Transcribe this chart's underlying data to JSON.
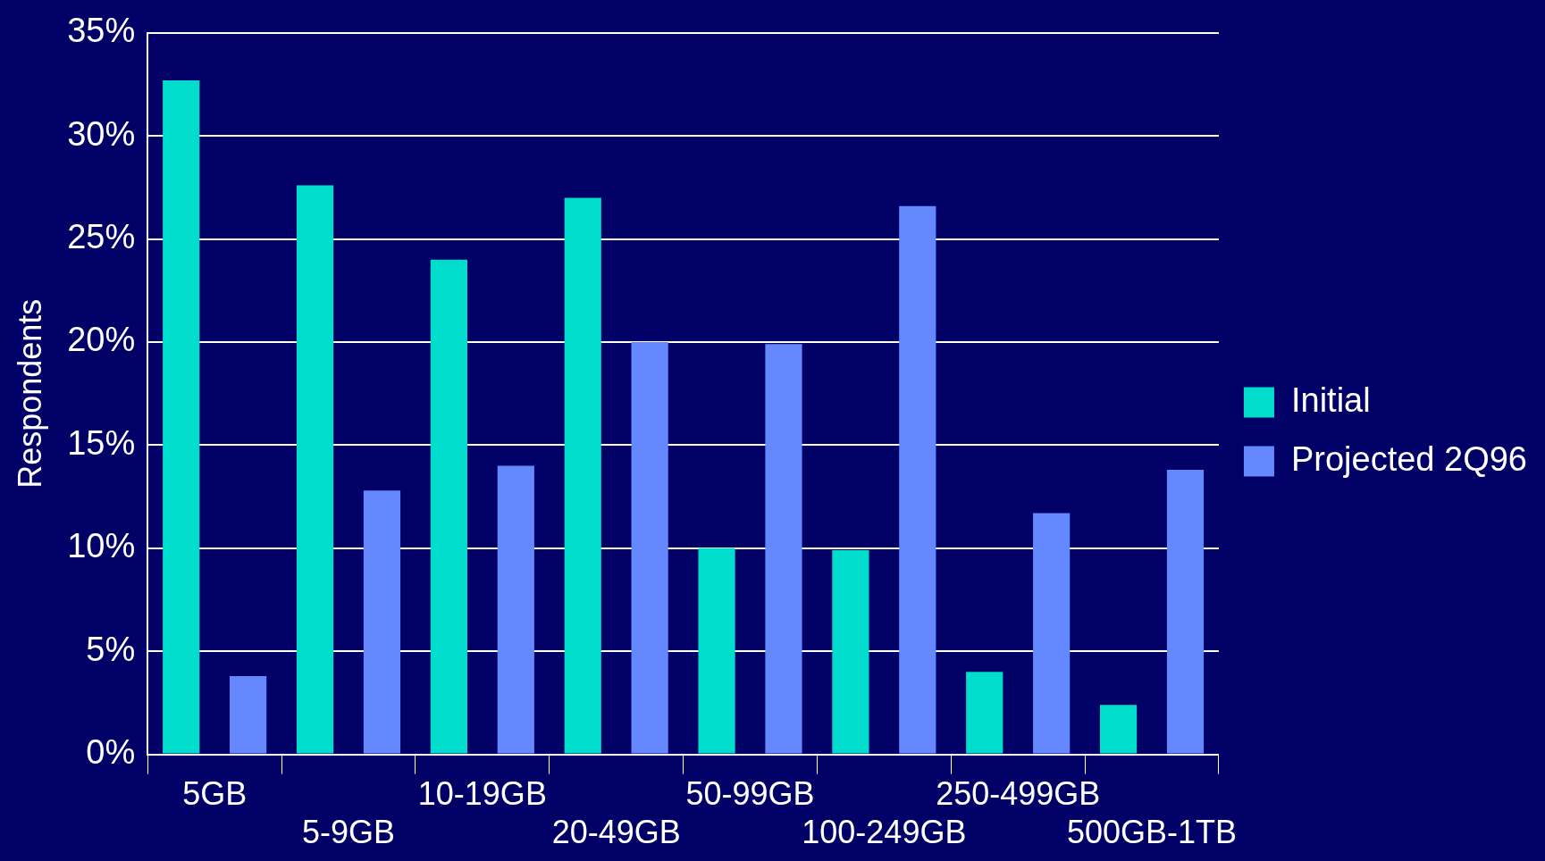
{
  "chart_data": {
    "type": "bar",
    "ylabel": "Respondents",
    "categories": [
      "5GB",
      "5-9GB",
      "10-19GB",
      "20-49GB",
      "50-99GB",
      "100-249GB",
      "250-499GB",
      "500GB-1TB"
    ],
    "series": [
      {
        "name": "Initial",
        "color": "#00ddcc",
        "values": [
          32.7,
          27.6,
          24.0,
          27.0,
          10.0,
          9.9,
          4.0,
          2.4
        ]
      },
      {
        "name": "Projected 2Q96",
        "color": "#6688ff",
        "values": [
          3.8,
          12.8,
          14.0,
          20.0,
          19.9,
          26.6,
          11.7,
          13.8
        ]
      }
    ],
    "ylim": [
      0,
      35
    ],
    "yticks": [
      {
        "value": 0,
        "label": "0%"
      },
      {
        "value": 5,
        "label": "5%"
      },
      {
        "value": 10,
        "label": "10%"
      },
      {
        "value": 15,
        "label": "15%"
      },
      {
        "value": 20,
        "label": "20%"
      },
      {
        "value": 25,
        "label": "25%"
      },
      {
        "value": 30,
        "label": "30%"
      },
      {
        "value": 35,
        "label": "35%"
      }
    ],
    "grid": "y",
    "legend": "right"
  }
}
